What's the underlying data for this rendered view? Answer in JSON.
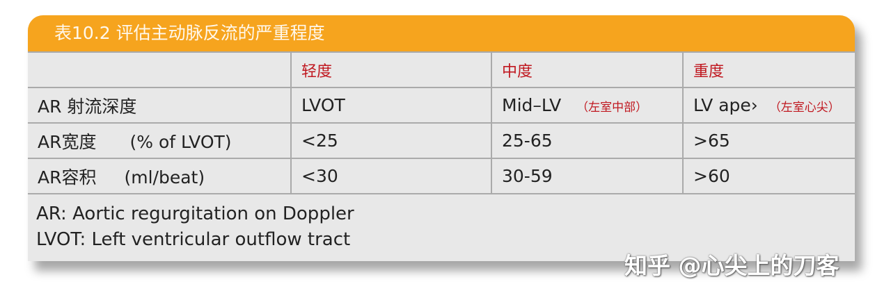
{
  "title": "表10.2 评估主动脉反流的严重程度",
  "columns": [
    "",
    "轻度",
    "中度",
    "重度"
  ],
  "rows": [
    {
      "label": "AR 射流深度",
      "unit": "",
      "cells": [
        {
          "v": "LVOT",
          "n": ""
        },
        {
          "v": "Mid–LV",
          "n": "（左室中部）"
        },
        {
          "v": "LV ape›",
          "n": "（左室心尖）"
        }
      ]
    },
    {
      "label": "AR宽度",
      "unit": "(% of LVOT)",
      "cells": [
        {
          "v": "<25",
          "n": ""
        },
        {
          "v": "25-65",
          "n": ""
        },
        {
          "v": ">65",
          "n": ""
        }
      ]
    },
    {
      "label": "AR容积",
      "unit": "(ml/beat)",
      "cells": [
        {
          "v": "<30",
          "n": ""
        },
        {
          "v": "30-59",
          "n": ""
        },
        {
          "v": ">60",
          "n": ""
        }
      ]
    }
  ],
  "notes": [
    "AR: Aortic regurgitation on Doppler",
    "LVOT: Left ventricular outflow tract"
  ],
  "watermark": "知乎 @心尖上的刀客",
  "colors": {
    "header": "#f6a41e",
    "accent_text": "#c0171f",
    "table_bg": "#e8e8e8"
  }
}
